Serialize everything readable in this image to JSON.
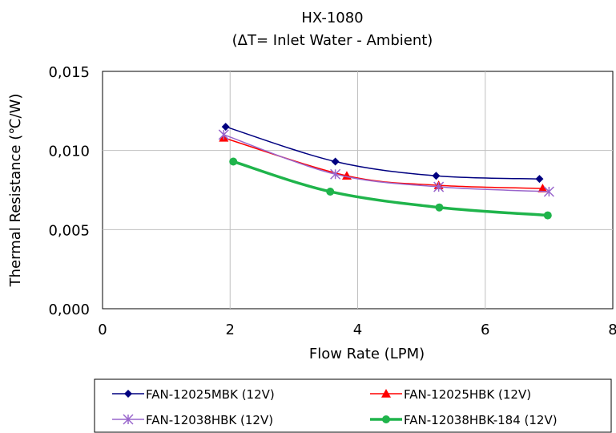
{
  "chart_data": {
    "type": "line",
    "title": "HX-1080",
    "subtitle": "(ΔT= Inlet Water - Ambient)",
    "xlabel": "Flow Rate (LPM)",
    "ylabel": "Thermal Resistance (℃/W)",
    "xlim": [
      0,
      8
    ],
    "ylim": [
      0,
      0.015
    ],
    "x_ticks": [
      0,
      2,
      4,
      6,
      8
    ],
    "y_ticks": [
      0,
      0.005,
      0.01,
      0.015
    ],
    "x_tick_labels": [
      "0",
      "2",
      "4",
      "6",
      "8"
    ],
    "y_tick_labels": [
      "0,000",
      "0,005",
      "0,010",
      "0,015"
    ],
    "grid": true,
    "legend_position": "bottom",
    "series": [
      {
        "name": "FAN-12025MBK (12V)",
        "color": "#000080",
        "marker": "diamond",
        "points": [
          [
            1.93,
            0.0115
          ],
          [
            3.65,
            0.0093
          ],
          [
            5.23,
            0.0084
          ],
          [
            6.85,
            0.0082
          ]
        ]
      },
      {
        "name": "FAN-12025HBK (12V)",
        "color": "#ff0000",
        "marker": "triangle",
        "points": [
          [
            1.9,
            0.0108
          ],
          [
            3.83,
            0.0084
          ],
          [
            5.27,
            0.0078
          ],
          [
            6.9,
            0.0076
          ]
        ]
      },
      {
        "name": "FAN-12038HBK (12V)",
        "color": "#9966cc",
        "marker": "asterisk",
        "points": [
          [
            1.9,
            0.011
          ],
          [
            3.65,
            0.0085
          ],
          [
            5.27,
            0.0077
          ],
          [
            7.0,
            0.0074
          ]
        ]
      },
      {
        "name": "FAN-12038HBK-184 (12V)",
        "color": "#1fb44b",
        "marker": "circle",
        "points": [
          [
            2.05,
            0.0093
          ],
          [
            3.57,
            0.0074
          ],
          [
            5.28,
            0.0064
          ],
          [
            6.98,
            0.0059
          ]
        ]
      }
    ]
  }
}
